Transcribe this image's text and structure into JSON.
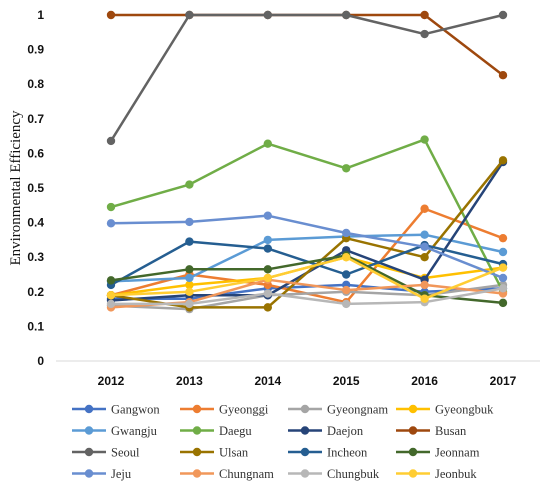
{
  "chart_data": {
    "type": "line",
    "title": "",
    "xlabel": "",
    "ylabel": "Environmental Efficiency",
    "ylim": [
      0,
      1
    ],
    "yticks": [
      "0",
      "0.1",
      "0.2",
      "0.3",
      "0.4",
      "0.5",
      "0.6",
      "0.7",
      "0.8",
      "0.9",
      "1"
    ],
    "categories": [
      "2012",
      "2013",
      "2014",
      "2015",
      "2016",
      "2017"
    ],
    "grid": false,
    "legend_position": "bottom",
    "series": [
      {
        "name": "Gangwon",
        "color": "#4472C4",
        "values": [
          0.18,
          0.18,
          0.21,
          0.22,
          0.2,
          0.21
        ]
      },
      {
        "name": "Gyeonggi",
        "color": "#ED7D31",
        "values": [
          0.19,
          0.25,
          0.22,
          0.17,
          0.44,
          0.355
        ]
      },
      {
        "name": "Gyeongnam",
        "color": "#A5A5A5",
        "values": [
          0.16,
          0.15,
          0.19,
          0.2,
          0.19,
          0.22
        ]
      },
      {
        "name": "Gyeongbuk",
        "color": "#FFC000",
        "values": [
          0.19,
          0.22,
          0.24,
          0.3,
          0.24,
          0.27
        ]
      },
      {
        "name": "Gwangju",
        "color": "#5B9BD5",
        "values": [
          0.23,
          0.24,
          0.35,
          0.36,
          0.365,
          0.315
        ]
      },
      {
        "name": "Daegu",
        "color": "#70AD47",
        "values": [
          0.445,
          0.51,
          0.628,
          0.557,
          0.64,
          0.2
        ]
      },
      {
        "name": "Daejon",
        "color": "#264478",
        "values": [
          0.175,
          0.19,
          0.19,
          0.32,
          0.235,
          0.575
        ]
      },
      {
        "name": "Busan",
        "color": "#9E480E",
        "values": [
          1,
          1,
          1,
          1,
          1,
          0.826
        ]
      },
      {
        "name": "Seoul",
        "color": "#636363",
        "values": [
          0.636,
          1,
          1,
          1,
          0.945,
          1
        ]
      },
      {
        "name": "Ulsan",
        "color": "#997300",
        "values": [
          0.19,
          0.155,
          0.155,
          0.355,
          0.3,
          0.58
        ]
      },
      {
        "name": "Incheon",
        "color": "#255E91",
        "values": [
          0.22,
          0.345,
          0.325,
          0.25,
          0.335,
          0.28
        ]
      },
      {
        "name": "Jeonnam",
        "color": "#43682B",
        "values": [
          0.233,
          0.265,
          0.265,
          0.305,
          0.19,
          0.168
        ]
      },
      {
        "name": "Jeju",
        "color": "#698ED0",
        "values": [
          0.398,
          0.402,
          0.42,
          0.37,
          0.33,
          0.24
        ]
      },
      {
        "name": "Chungnam",
        "color": "#F1975A",
        "values": [
          0.155,
          0.17,
          0.235,
          0.205,
          0.22,
          0.195
        ]
      },
      {
        "name": "Chungbuk",
        "color": "#B7B7B7",
        "values": [
          0.165,
          0.165,
          0.195,
          0.165,
          0.17,
          0.21
        ]
      },
      {
        "name": "Jeonbuk",
        "color": "#FFCD33",
        "values": [
          0.19,
          0.2,
          0.24,
          0.3,
          0.18,
          0.27
        ]
      }
    ]
  }
}
